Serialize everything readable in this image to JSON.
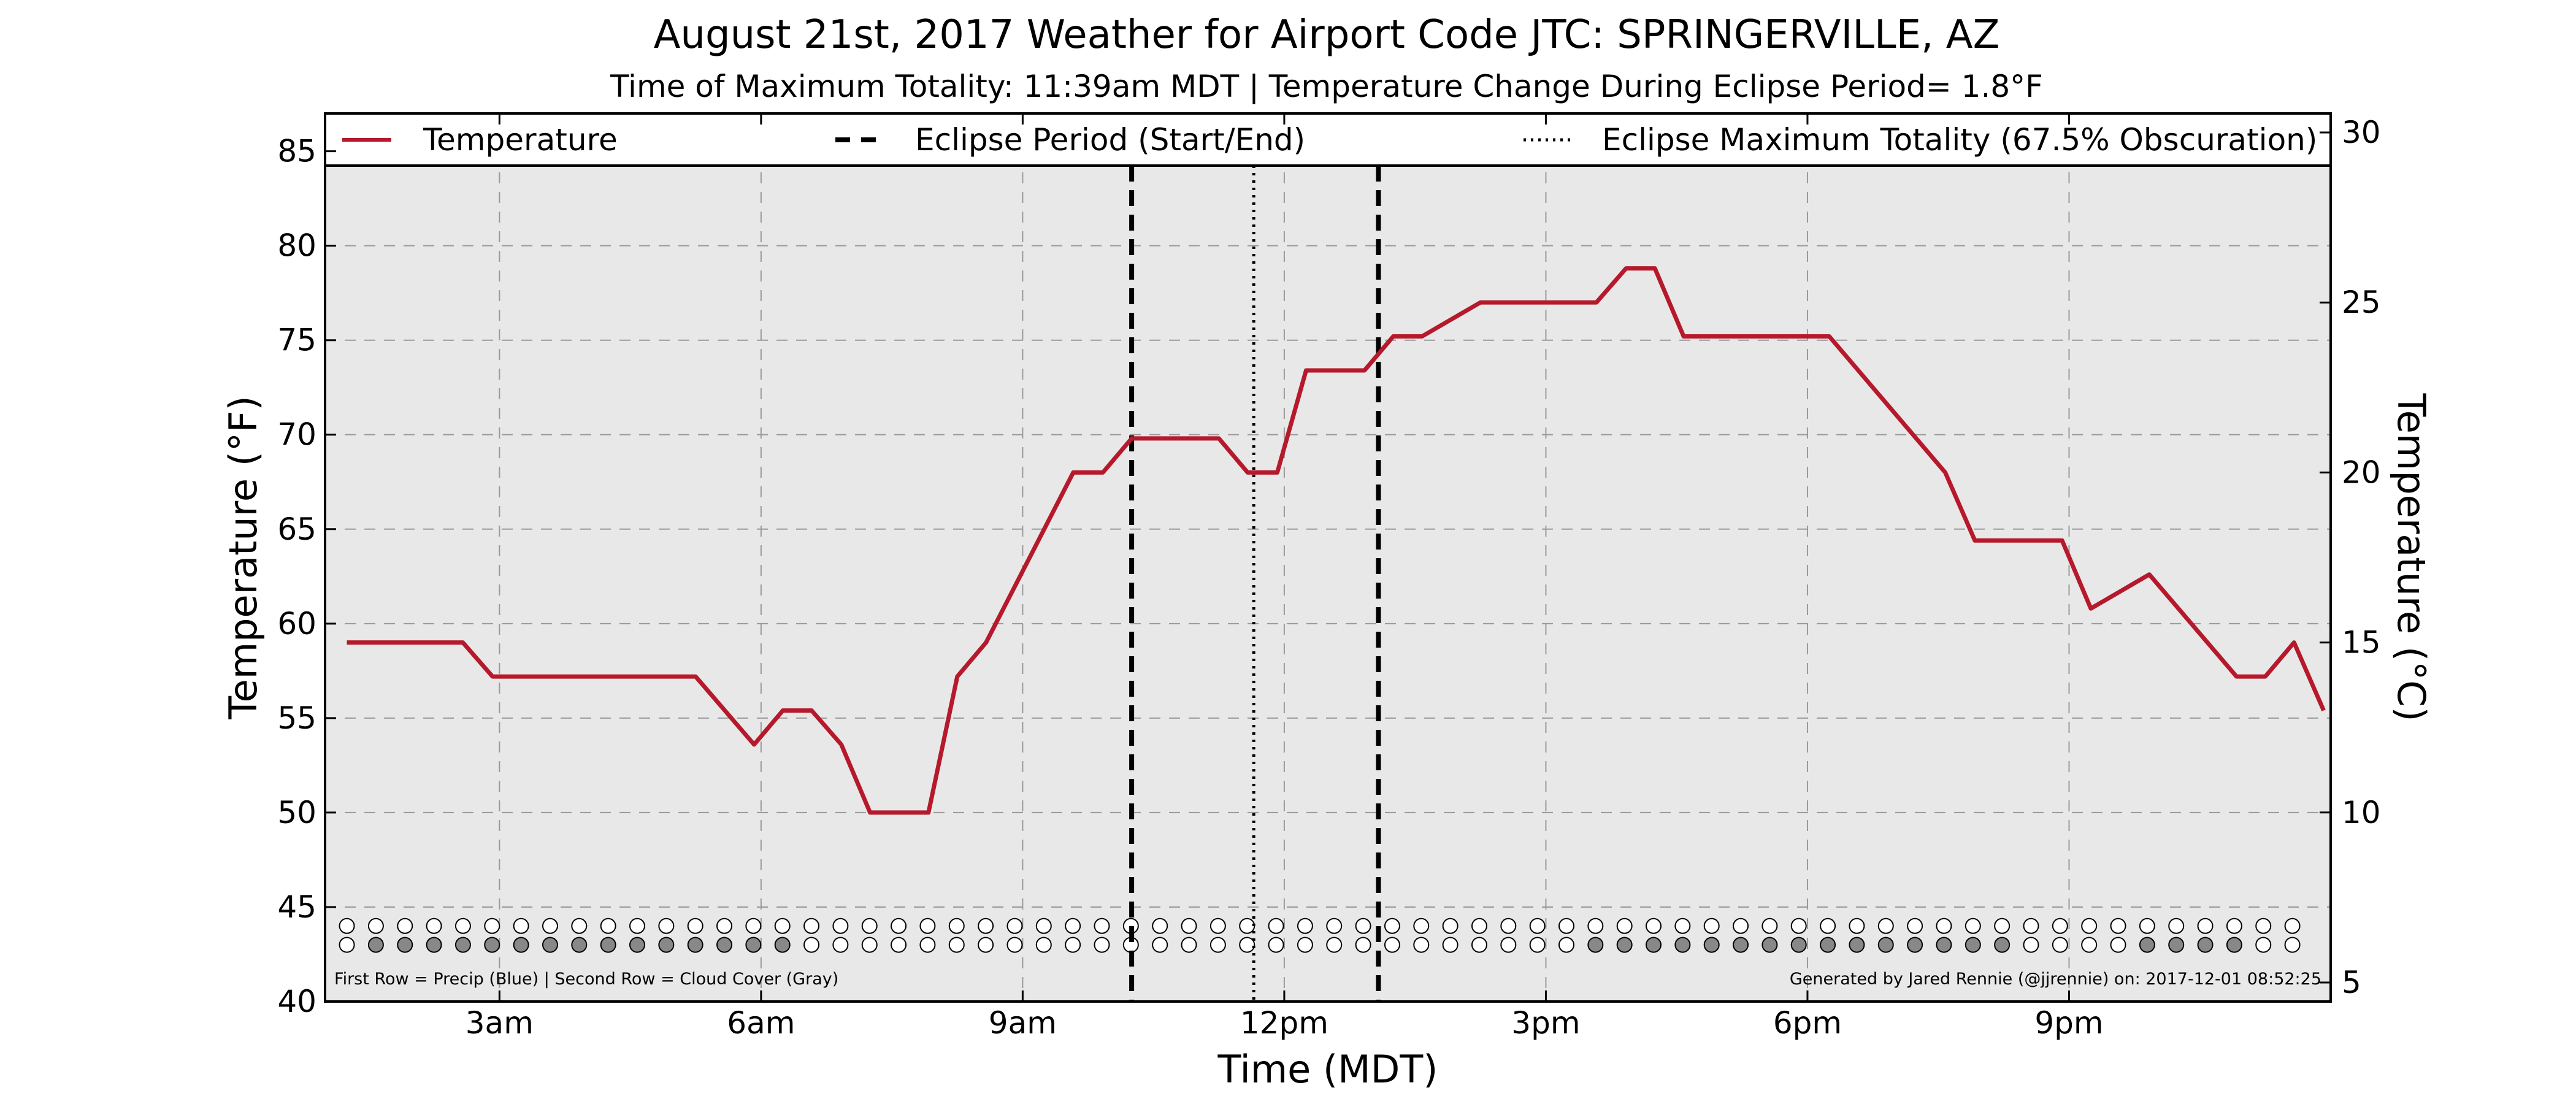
{
  "chart_data": {
    "type": "line",
    "title": "August 21st, 2017 Weather for Airport Code JTC: SPRINGERVILLE, AZ",
    "subtitle": "Time of Maximum Totality: 11:39am MDT | Temperature Change During Eclipse Period= 1.8°F",
    "xlabel": "Time (MDT)",
    "ylabel": "Temperature (°F)",
    "y2label": "Temperature (°C)",
    "xlim": [
      1.0,
      24.0
    ],
    "ylim": [
      40,
      87
    ],
    "y2lim": [
      4.44,
      30.56
    ],
    "x_ticks": [
      {
        "x": 3,
        "label": "3am"
      },
      {
        "x": 6,
        "label": "6am"
      },
      {
        "x": 9,
        "label": "9am"
      },
      {
        "x": 12,
        "label": "12pm"
      },
      {
        "x": 15,
        "label": "3pm"
      },
      {
        "x": 18,
        "label": "6pm"
      },
      {
        "x": 21,
        "label": "9pm"
      }
    ],
    "y_ticks": [
      {
        "y": 40,
        "label": "40"
      },
      {
        "y": 45,
        "label": "45"
      },
      {
        "y": 50,
        "label": "50"
      },
      {
        "y": 55,
        "label": "55"
      },
      {
        "y": 60,
        "label": "60"
      },
      {
        "y": 65,
        "label": "65"
      },
      {
        "y": 70,
        "label": "70"
      },
      {
        "y": 75,
        "label": "75"
      },
      {
        "y": 80,
        "label": "80"
      },
      {
        "y": 85,
        "label": "85"
      }
    ],
    "y2_ticks": [
      {
        "y": 5,
        "label": "5"
      },
      {
        "y": 10,
        "label": "10"
      },
      {
        "y": 15,
        "label": "15"
      },
      {
        "y": 20,
        "label": "20"
      },
      {
        "y": 25,
        "label": "25"
      },
      {
        "y": 30,
        "label": "30"
      }
    ],
    "grid": true,
    "legend_position": "top",
    "legend": [
      {
        "label": "Temperature",
        "style": "solid"
      },
      {
        "label": "Eclipse Period (Start/End)",
        "style": "dashed"
      },
      {
        "label": "Eclipse Maximum Totality (67.5% Obscuration)",
        "style": "dotted"
      }
    ],
    "series": [
      {
        "name": "Temperature",
        "color": "#b5192b",
        "x": [
          1.25,
          2.58,
          2.92,
          5.25,
          5.92,
          6.25,
          6.58,
          6.92,
          7.25,
          7.92,
          8.25,
          8.58,
          9.58,
          9.92,
          10.25,
          11.25,
          11.58,
          11.92,
          12.25,
          12.92,
          13.25,
          13.58,
          14.25,
          14.58,
          15.58,
          15.92,
          16.25,
          16.58,
          17.25,
          18.25,
          19.58,
          19.92,
          20.92,
          21.25,
          21.92,
          22.92,
          23.25,
          23.58,
          23.92
        ],
        "y": [
          59.0,
          59.0,
          57.2,
          57.2,
          53.6,
          55.4,
          55.4,
          53.6,
          50.0,
          50.0,
          57.2,
          59.0,
          68.0,
          68.0,
          69.8,
          69.8,
          68.0,
          68.0,
          73.4,
          73.4,
          75.2,
          75.2,
          77.0,
          77.0,
          77.0,
          78.8,
          78.8,
          75.2,
          75.2,
          75.2,
          68.0,
          64.4,
          64.4,
          60.8,
          62.6,
          57.2,
          57.2,
          59.0,
          55.4
        ]
      }
    ],
    "eclipse_start": 10.25,
    "eclipse_end": 13.08,
    "eclipse_max": 11.65,
    "indicator_rows": {
      "x_start": 1.25,
      "x_step": 0.333,
      "count": 68,
      "precip_y": 44.0,
      "cloud_y": 43.0,
      "precip_fill": [],
      "cloud_fill": [
        1,
        2,
        3,
        4,
        5,
        6,
        7,
        8,
        9,
        10,
        11,
        12,
        13,
        14,
        15,
        43,
        44,
        45,
        46,
        47,
        48,
        49,
        50,
        51,
        52,
        53,
        54,
        55,
        56,
        57,
        62,
        63,
        64,
        65
      ]
    },
    "annotations": {
      "footer_left": "First Row = Precip (Blue) | Second Row = Cloud Cover (Gray)",
      "footer_right": "Generated by Jared Rennie (@jjrennie) on: 2017-12-01 08:52:25"
    },
    "colors": {
      "background": "#e8e8e8",
      "temperature": "#b5192b",
      "cloud_fill": "#888888",
      "precip_fill": "#3b6fd4"
    }
  }
}
